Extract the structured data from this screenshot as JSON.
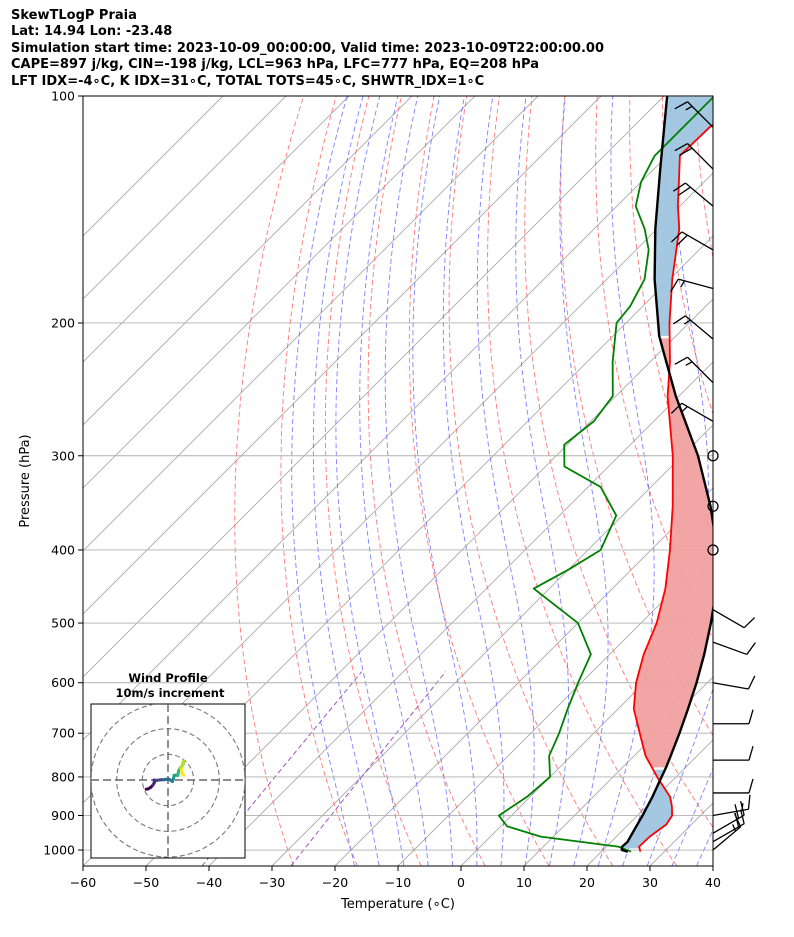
{
  "header": {
    "line1": "SkewTLogP Praia",
    "line2": "Lat: 14.94   Lon: -23.48",
    "line3": "Simulation start time: 2023-10-09_00:00:00, Valid time: 2023-10-09T22:00:00.00",
    "line4": "CAPE=897 j/kg, CIN=-198 j/kg, LCL=963 hPa, LFC=777 hPa, EQ=208 hPa",
    "line5": "LFT IDX=-4∘C, K IDX=31∘C, TOTAL TOTS=45∘C, SHWTR_IDX=1∘C"
  },
  "colors": {
    "temperature": "#ff0000",
    "dewpoint": "#008000",
    "parcel": "#000000",
    "cape_fill": "#f0a0a0",
    "cin_fill": "#9fc4e0",
    "dry_adiabat": "#ff6060",
    "moist_adiabat": "#6a6aff",
    "mixing_ratio": "#9a40c0",
    "isotherm": "#aaaaaa"
  },
  "chart_data": [
    {
      "type": "line",
      "title": "SkewTLogP Praia",
      "xlabel": "Temperature (∘C)",
      "ylabel": "Pressure (hPa)",
      "xlim": [
        -60,
        40
      ],
      "ylim": [
        1050,
        100
      ],
      "x_ticks": [
        -60,
        -50,
        -40,
        -30,
        -20,
        -10,
        0,
        10,
        20,
        30,
        40
      ],
      "x_tick_labels": [
        "−60",
        "−50",
        "−40",
        "−30",
        "−20",
        "−10",
        "0",
        "10",
        "20",
        "30",
        "40"
      ],
      "y_ticks": [
        1000,
        900,
        800,
        700,
        600,
        500,
        400,
        300,
        200,
        100
      ],
      "y_tick_labels": [
        "1000",
        "900",
        "800",
        "700",
        "600",
        "500",
        "400",
        "300",
        "200",
        "100"
      ],
      "series": [
        {
          "name": "Temperature",
          "pressure": [
            1005,
            990,
            960,
            925,
            900,
            875,
            850,
            800,
            750,
            700,
            650,
            600,
            550,
            500,
            450,
            400,
            350,
            300,
            250,
            225,
            200,
            175,
            150,
            140,
            130,
            120,
            110,
            100
          ],
          "temp": [
            26.2,
            25.2,
            25.3,
            26.0,
            25.5,
            24.0,
            22.2,
            17.0,
            11.8,
            7.3,
            2.5,
            -1.3,
            -4.6,
            -7.5,
            -11.6,
            -17.0,
            -23.5,
            -31.5,
            -41.8,
            -46.9,
            -53.1,
            -59.6,
            -66.5,
            -70.3,
            -74.0,
            -78.0,
            -77.8,
            -76.0
          ]
        },
        {
          "name": "Dewpoint",
          "pressure": [
            1005,
            990,
            960,
            930,
            900,
            850,
            800,
            750,
            700,
            650,
            600,
            550,
            500,
            450,
            425,
            400,
            360,
            330,
            310,
            290,
            270,
            250,
            225,
            200,
            190,
            175,
            160,
            150,
            140,
            130,
            120,
            110,
            100
          ],
          "temp": [
            24.7,
            22.0,
            8.0,
            1.0,
            -2.0,
            -0.5,
            0.0,
            -3.5,
            -5.5,
            -8.0,
            -10.5,
            -13.0,
            -20.0,
            -32.5,
            -30.0,
            -28.0,
            -31.0,
            -38.0,
            -47.0,
            -50.5,
            -49.5,
            -50.5,
            -56.0,
            -61.5,
            -62.0,
            -64.0,
            -68.0,
            -72.0,
            -77.0,
            -80.0,
            -82.0,
            -82.0,
            -82.0
          ]
        },
        {
          "name": "Parcel",
          "pressure": [
            1005,
            1000,
            990,
            975,
            963,
            950,
            900,
            850,
            800,
            777,
            750,
            700,
            650,
            600,
            550,
            500,
            450,
            400,
            350,
            300,
            250,
            225,
            208,
            200,
            175,
            150,
            125,
            100
          ],
          "temp": [
            24.2,
            23.0,
            22.5,
            22.6,
            22.3,
            22.0,
            20.8,
            19.4,
            17.7,
            16.9,
            15.8,
            13.6,
            11.1,
            8.3,
            5.0,
            1.1,
            -3.5,
            -9.5,
            -17.5,
            -27.5,
            -40.5,
            -47.5,
            -52.7,
            -54.9,
            -62.4,
            -70.3,
            -79.0,
            -89.5
          ]
        }
      ],
      "cape_top_hpa": 208,
      "lfc_hpa": 777,
      "wind_barbs": {
        "unit": "knots",
        "pressure": [
          110,
          125,
          140,
          160,
          180,
          210,
          240,
          270,
          300,
          350,
          400,
          480,
          530,
          600,
          680,
          760,
          840,
          900,
          950,
          975,
          1000
        ],
        "speed": [
          15,
          20,
          20,
          20,
          15,
          15,
          15,
          15,
          0,
          0,
          0,
          10,
          10,
          10,
          10,
          10,
          10,
          15,
          20,
          20,
          15
        ],
        "direction": [
          315,
          315,
          310,
          300,
          285,
          310,
          315,
          300,
          0,
          0,
          0,
          120,
          110,
          100,
          90,
          90,
          90,
          80,
          60,
          60,
          50
        ]
      }
    },
    {
      "type": "scatter",
      "title": "Wind Profile",
      "subtitle": "10m/s increment",
      "u": [
        -8.5,
        -7.6,
        -6.8,
        -5.9,
        -5.3,
        -5.4,
        -4.5,
        -3.6,
        -2.6,
        -1.6,
        -0.6,
        0.4,
        1.2,
        1.7,
        2.0,
        2.2,
        2.4,
        3.2,
        3.8,
        4.0,
        4.1,
        4.7,
        5.4,
        5.9,
        6.1,
        5.9,
        5.4,
        5.3,
        5.4,
        5.7,
        6.2
      ],
      "v": [
        -3.6,
        -3.4,
        -2.9,
        -2.0,
        -1.0,
        0.0,
        -0.2,
        0.0,
        0.1,
        0.1,
        0.3,
        0.3,
        -0.2,
        -0.6,
        0.1,
        0.9,
        1.8,
        1.9,
        1.7,
        2.8,
        3.5,
        4.6,
        5.3,
        6.2,
        7.4,
        7.0,
        5.4,
        4.3,
        3.0,
        2.2,
        1.8
      ],
      "rings_ms": [
        10,
        20,
        30
      ],
      "range_ms": 30
    }
  ]
}
